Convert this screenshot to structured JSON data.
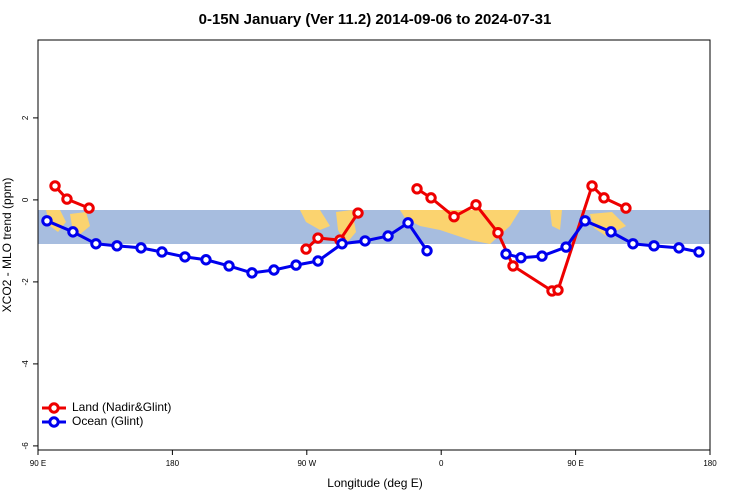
{
  "chart_data": {
    "type": "line",
    "title": "0-15N January (Ver 11.2)   2014-09-06 to 2024-07-31",
    "x_label": "Longitude (deg E)",
    "y_label": "XCO2 - MLO trend (ppm)",
    "xlim": [
      90,
      540
    ],
    "xticks": [
      {
        "value": 90,
        "label": "90 E"
      },
      180,
      {
        "value": 270,
        "label": "90 W"
      },
      {
        "value": 360,
        "label": "0"
      },
      {
        "value": 450,
        "label": "90 E"
      },
      {
        "value": 540,
        "label": "180"
      }
    ],
    "ylim": [
      -6.1,
      3.9
    ],
    "yticks": [
      -6,
      -4,
      -2,
      0,
      2
    ],
    "legend": "bottomleft",
    "series": [
      {
        "name": "Land (Nadir&Glint)",
        "color": "#ee0000",
        "x": [
          101.4,
          109.4,
          124.2,
          null,
          269.5,
          277.5,
          292.2,
          304.3,
          null,
          343.8,
          353.2,
          368.6,
          383.3,
          398.0,
          408.1,
          434.2,
          438.2,
          461.0,
          469.0,
          483.7
        ],
        "values": [
          0.34,
          0.02,
          -0.2,
          null,
          -1.2,
          -0.93,
          -0.98,
          -0.32,
          null,
          0.27,
          0.05,
          -0.41,
          -0.12,
          -0.8,
          -1.61,
          -2.22,
          -2.2,
          0.34,
          0.05,
          -0.2
        ]
      },
      {
        "name": "Ocean (Glint)",
        "color": "#0000ee",
        "x": [
          96.0,
          113.4,
          128.8,
          142.9,
          159.0,
          173.0,
          188.4,
          202.5,
          217.9,
          233.3,
          248.0,
          262.8,
          277.5,
          293.6,
          309.0,
          324.4,
          337.8,
          350.5,
          null,
          403.4,
          413.4,
          427.5,
          443.6,
          456.3,
          473.7,
          488.4,
          502.5,
          519.2,
          532.6
        ],
        "values": [
          -0.51,
          -0.78,
          -1.07,
          -1.12,
          -1.17,
          -1.27,
          -1.39,
          -1.46,
          -1.61,
          -1.78,
          -1.71,
          -1.59,
          -1.49,
          -1.07,
          -1.0,
          -0.88,
          -0.56,
          -1.24,
          null,
          -1.32,
          -1.41,
          -1.37,
          -1.15,
          -0.51,
          -0.78,
          -1.07,
          -1.12,
          -1.17,
          -1.27
        ]
      }
    ]
  }
}
